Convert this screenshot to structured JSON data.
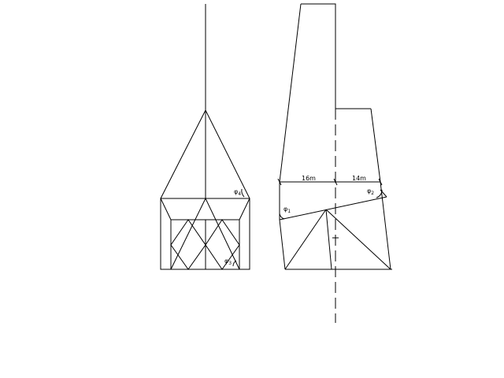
{
  "dimensions": {
    "left_span": "16m",
    "right_span": "14m"
  },
  "angles": {
    "phi_symbol": "φ",
    "left_view_upper": {
      "sub": "4"
    },
    "left_view_lower": {
      "sub": "3"
    },
    "right_view_left": {
      "sub": "1"
    },
    "right_view_right": {
      "sub": "2"
    }
  }
}
